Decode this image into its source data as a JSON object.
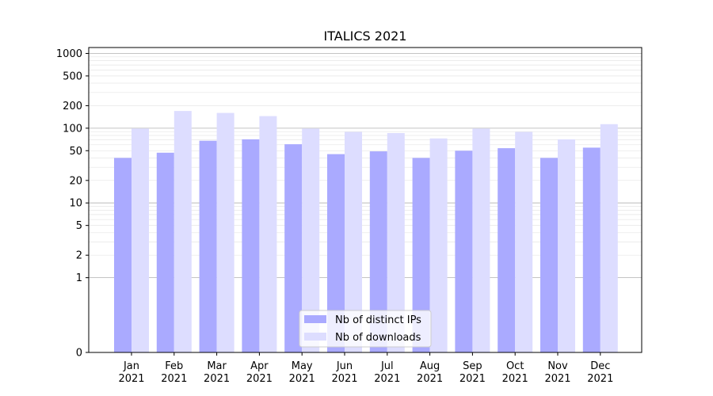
{
  "chart_data": {
    "type": "bar",
    "title": "ITALICS 2021",
    "xlabel": "",
    "ylabel": "",
    "yscale": "symlog",
    "ylim": [
      0,
      1200
    ],
    "yticks": [
      0,
      1,
      2,
      5,
      10,
      20,
      50,
      100,
      200,
      500,
      1000
    ],
    "grid": true,
    "legend_position": "bottom-center",
    "categories": [
      [
        "Jan",
        "2021"
      ],
      [
        "Feb",
        "2021"
      ],
      [
        "Mar",
        "2021"
      ],
      [
        "Apr",
        "2021"
      ],
      [
        "May",
        "2021"
      ],
      [
        "Jun",
        "2021"
      ],
      [
        "Jul",
        "2021"
      ],
      [
        "Aug",
        "2021"
      ],
      [
        "Sep",
        "2021"
      ],
      [
        "Oct",
        "2021"
      ],
      [
        "Nov",
        "2021"
      ],
      [
        "Dec",
        "2021"
      ]
    ],
    "series": [
      {
        "name": "Nb of distinct IPs",
        "color": "#aaaaff",
        "values": [
          40,
          47,
          68,
          71,
          61,
          45,
          49,
          40,
          50,
          54,
          40,
          55
        ]
      },
      {
        "name": "Nb of downloads",
        "color": "#ddddff",
        "values": [
          99,
          170,
          160,
          145,
          99,
          89,
          86,
          73,
          99,
          89,
          71,
          113
        ]
      }
    ]
  }
}
